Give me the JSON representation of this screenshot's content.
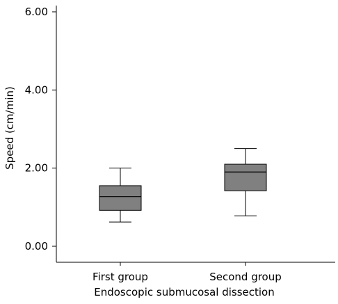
{
  "chart_data": {
    "type": "box",
    "title": "",
    "xlabel": "Endoscopic submucosal dissection",
    "ylabel": "Speed (cm/min)",
    "ylim": [
      0,
      6.4
    ],
    "yticks": [
      "0.00",
      "2.00",
      "4.00",
      "6.00"
    ],
    "ytick_values": [
      0,
      2,
      4,
      6
    ],
    "categories": [
      "First group",
      "Second group"
    ],
    "boxes": [
      {
        "category": "First group",
        "min": 0.62,
        "q1": 0.92,
        "median": 1.27,
        "q3": 1.55,
        "max": 2.0
      },
      {
        "category": "Second group",
        "min": 0.78,
        "q1": 1.42,
        "median": 1.9,
        "q3": 2.1,
        "max": 2.5
      }
    ],
    "box_fill": "#808080",
    "grid": false,
    "legend": "none"
  }
}
